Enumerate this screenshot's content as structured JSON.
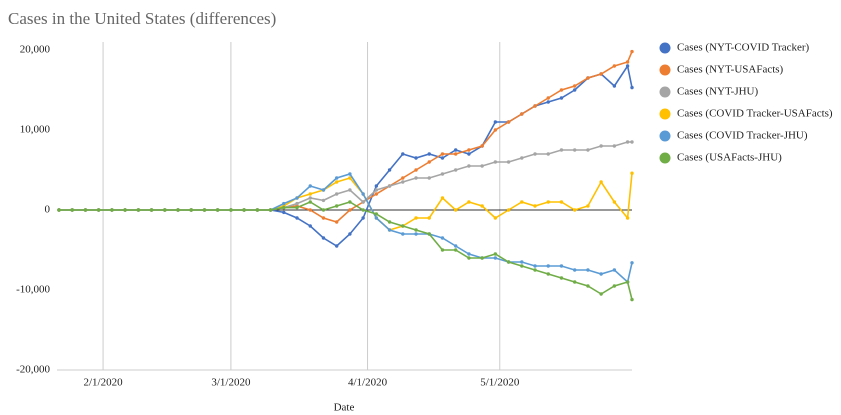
{
  "chart_data": {
    "type": "line",
    "title": "Cases in the United States (differences)",
    "x_label": "Date",
    "x": [
      "1/22/2020",
      "1/25/2020",
      "1/28/2020",
      "1/31/2020",
      "2/3/2020",
      "2/6/2020",
      "2/9/2020",
      "2/12/2020",
      "2/15/2020",
      "2/18/2020",
      "2/21/2020",
      "2/24/2020",
      "2/27/2020",
      "3/1/2020",
      "3/4/2020",
      "3/7/2020",
      "3/10/2020",
      "3/13/2020",
      "3/16/2020",
      "3/19/2020",
      "3/22/2020",
      "3/25/2020",
      "3/28/2020",
      "3/31/2020",
      "4/3/2020",
      "4/6/2020",
      "4/9/2020",
      "4/12/2020",
      "4/15/2020",
      "4/18/2020",
      "4/21/2020",
      "4/24/2020",
      "4/27/2020",
      "4/30/2020",
      "5/3/2020",
      "5/6/2020",
      "5/9/2020",
      "5/12/2020",
      "5/15/2020",
      "5/18/2020",
      "5/21/2020",
      "5/24/2020",
      "5/27/2020",
      "5/30/2020",
      "5/31/2020"
    ],
    "series": [
      {
        "name": "Cases (NYT-COVID Tracker)",
        "color": "#4472c4",
        "values": [
          0,
          0,
          0,
          0,
          0,
          0,
          0,
          0,
          0,
          0,
          0,
          0,
          0,
          0,
          0,
          0,
          0,
          -300,
          -1000,
          -2000,
          -3500,
          -4500,
          -3000,
          -1000,
          3000,
          5000,
          7000,
          6500,
          7000,
          6500,
          7500,
          7000,
          8000,
          11000,
          11000,
          12000,
          13000,
          13500,
          14000,
          15000,
          16500,
          17000,
          15500,
          18000,
          15300
        ]
      },
      {
        "name": "Cases (NYT-USAFacts)",
        "color": "#ed7d31",
        "values": [
          0,
          0,
          0,
          0,
          0,
          0,
          0,
          0,
          0,
          0,
          0,
          0,
          0,
          0,
          0,
          0,
          0,
          300,
          500,
          0,
          -1000,
          -1500,
          0,
          1000,
          2000,
          3000,
          4000,
          5000,
          6000,
          7000,
          7000,
          7500,
          8000,
          10000,
          11000,
          12000,
          13000,
          14000,
          15000,
          15500,
          16500,
          17000,
          18000,
          18500,
          19800
        ]
      },
      {
        "name": "Cases (NYT-JHU)",
        "color": "#a5a5a5",
        "values": [
          0,
          0,
          0,
          0,
          0,
          0,
          0,
          0,
          0,
          0,
          0,
          0,
          0,
          0,
          0,
          0,
          0,
          300,
          800,
          1500,
          1200,
          2000,
          2500,
          1000,
          2500,
          3000,
          3500,
          4000,
          4000,
          4500,
          5000,
          5500,
          5500,
          6000,
          6000,
          6500,
          7000,
          7000,
          7500,
          7500,
          7500,
          8000,
          8000,
          8500,
          8500
        ]
      },
      {
        "name": "Cases (COVID Tracker-USAFacts)",
        "color": "#ffc000",
        "values": [
          0,
          0,
          0,
          0,
          0,
          0,
          0,
          0,
          0,
          0,
          0,
          0,
          0,
          0,
          0,
          0,
          0,
          500,
          1500,
          2000,
          2500,
          3500,
          4000,
          2000,
          -1000,
          -2500,
          -2000,
          -1000,
          -1000,
          1500,
          0,
          1000,
          500,
          -1000,
          0,
          1000,
          500,
          1000,
          1000,
          0,
          500,
          3500,
          1000,
          -1000,
          4600
        ]
      },
      {
        "name": "Cases (COVID Tracker-JHU)",
        "color": "#5b9bd5",
        "values": [
          0,
          0,
          0,
          0,
          0,
          0,
          0,
          0,
          0,
          0,
          0,
          0,
          0,
          0,
          0,
          0,
          0,
          800,
          1500,
          3000,
          2500,
          4000,
          4500,
          2000,
          -1000,
          -2500,
          -3000,
          -3000,
          -3000,
          -3500,
          -4500,
          -5500,
          -6000,
          -6000,
          -6500,
          -6500,
          -7000,
          -7000,
          -7000,
          -7500,
          -7500,
          -8000,
          -7500,
          -9000,
          -6600
        ]
      },
      {
        "name": "Cases (USAFacts-JHU)",
        "color": "#70ad47",
        "values": [
          0,
          0,
          0,
          0,
          0,
          0,
          0,
          0,
          0,
          0,
          0,
          0,
          0,
          0,
          0,
          0,
          0,
          300,
          300,
          1000,
          0,
          500,
          1000,
          0,
          -500,
          -1500,
          -2000,
          -2500,
          -3000,
          -5000,
          -5000,
          -6000,
          -6000,
          -5500,
          -6500,
          -7000,
          -7500,
          -8000,
          -8500,
          -9000,
          -9500,
          -10500,
          -9500,
          -9000,
          -11200
        ]
      }
    ],
    "xlim": [
      "1/22/2020",
      "5/31/2020"
    ],
    "xticks": [
      "2/1/2020",
      "3/1/2020",
      "4/1/2020",
      "5/1/2020"
    ],
    "ylim": [
      -20000,
      20000
    ],
    "yticks": [
      {
        "value": -20000,
        "label": "-20,000"
      },
      {
        "value": -10000,
        "label": "-10,000"
      },
      0,
      {
        "value": 10000,
        "label": "10,000"
      },
      {
        "value": 20000,
        "label": "20,000"
      }
    ],
    "grid": true,
    "legend": "right"
  }
}
